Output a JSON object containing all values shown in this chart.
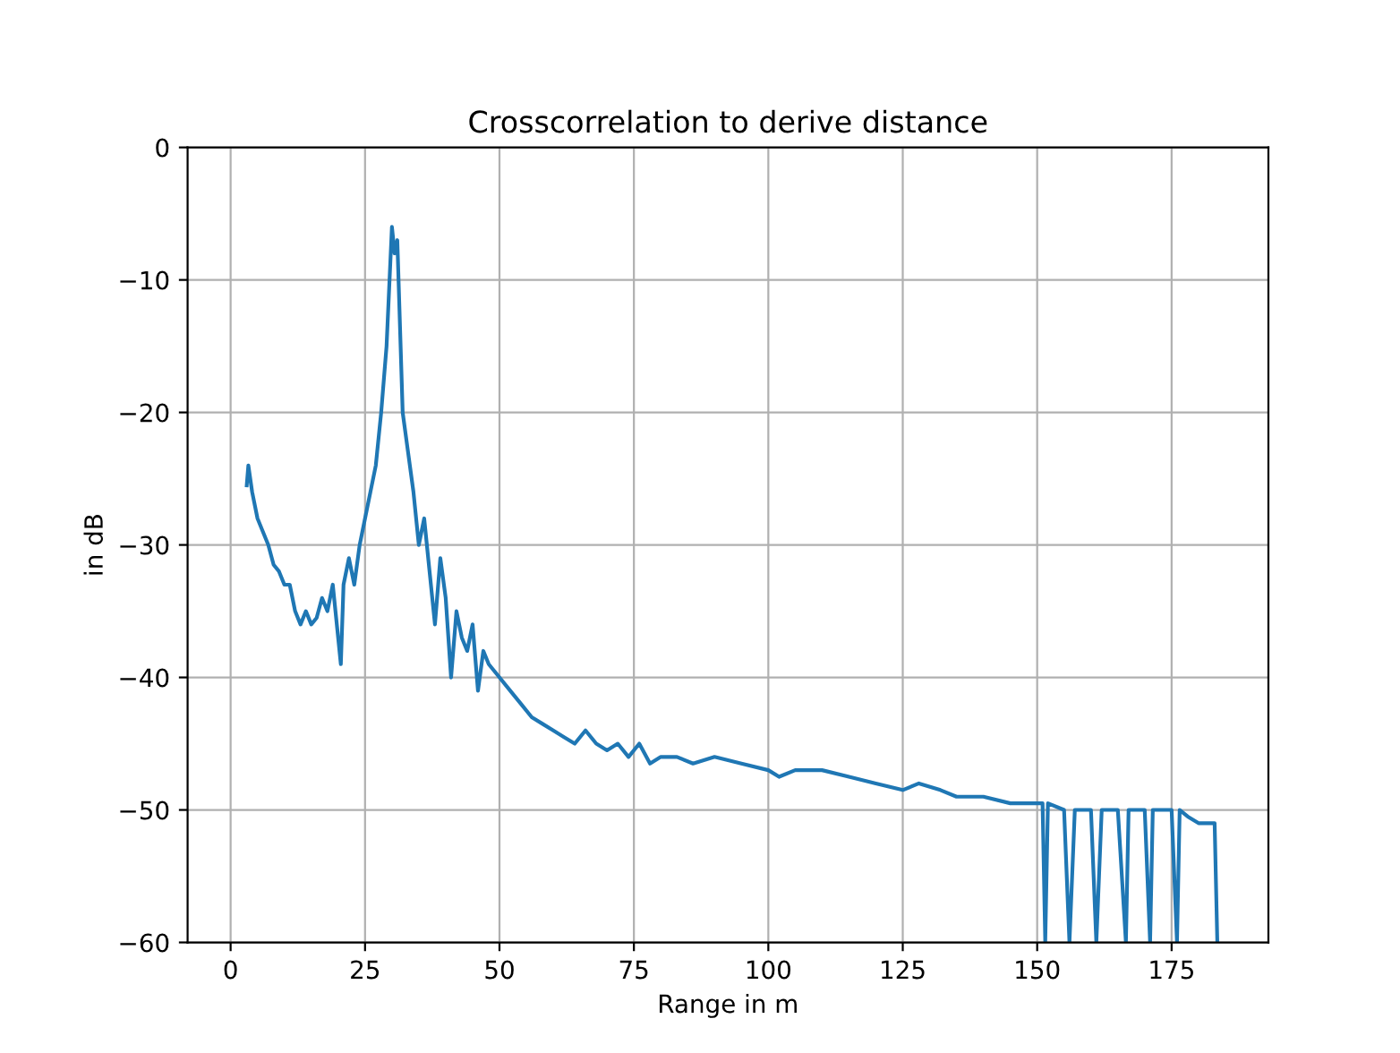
{
  "chart_data": {
    "type": "line",
    "title": "Crosscorrelation to derive distance",
    "xlabel": "Range in m",
    "ylabel": "in dB",
    "xlim": [
      -8,
      193
    ],
    "ylim": [
      -60,
      0
    ],
    "xticks": [
      0,
      25,
      50,
      75,
      100,
      125,
      150,
      175
    ],
    "yticks": [
      {
        "value": -60,
        "label": "−60"
      },
      {
        "value": -50,
        "label": "−50"
      },
      {
        "value": -40,
        "label": "−40"
      },
      {
        "value": -30,
        "label": "−30"
      },
      {
        "value": -20,
        "label": "−20"
      },
      {
        "value": -10,
        "label": "−10"
      },
      0
    ],
    "grid": true,
    "legend": false,
    "series": [
      {
        "color": "#1f77b4",
        "x": [
          3.0,
          3.3,
          4,
          5,
          6,
          7,
          8,
          9,
          10,
          11,
          12,
          13,
          14,
          15,
          16,
          17,
          18,
          19,
          20.5,
          21,
          22,
          23,
          24,
          25,
          26,
          27,
          28,
          29,
          30,
          30.5,
          31,
          32,
          33,
          34,
          35,
          36,
          37,
          38,
          39,
          40,
          41,
          42,
          43,
          44,
          45,
          46,
          47,
          48,
          50,
          52,
          54,
          56,
          58,
          60,
          62,
          64,
          66,
          68,
          70,
          72,
          74,
          76,
          78,
          80,
          83,
          86,
          90,
          95,
          100,
          102,
          105,
          110,
          115,
          120,
          125,
          128,
          132,
          135,
          140,
          145,
          150,
          151,
          151.5,
          152,
          155,
          156,
          157,
          160,
          161,
          162,
          165,
          166.5,
          167,
          170,
          171,
          171.5,
          175,
          176,
          176.5,
          178,
          180,
          182,
          183,
          183.5
        ],
        "values": [
          -25.5,
          -24,
          -26,
          -28,
          -29,
          -30,
          -31.5,
          -32,
          -33,
          -33,
          -35,
          -36,
          -35,
          -36,
          -35.5,
          -34,
          -35,
          -33,
          -39,
          -33,
          -31,
          -33,
          -30,
          -28,
          -26,
          -24,
          -20,
          -15,
          -6,
          -8,
          -7,
          -20,
          -23,
          -26,
          -30,
          -28,
          -32,
          -36,
          -31,
          -34,
          -40,
          -35,
          -37,
          -38,
          -36,
          -41,
          -38,
          -39,
          -40,
          -41,
          -42,
          -43,
          -43.5,
          -44,
          -44.5,
          -45,
          -44,
          -45,
          -45.5,
          -45,
          -46,
          -45,
          -46.5,
          -46,
          -46,
          -46.5,
          -46,
          -46.5,
          -47,
          -47.5,
          -47,
          -47,
          -47.5,
          -48,
          -48.5,
          -48,
          -48.5,
          -49,
          -49,
          -49.5,
          -49.5,
          -49.5,
          -60,
          -49.5,
          -50,
          -60,
          -50,
          -50,
          -60,
          -50,
          -50,
          -60,
          -50,
          -50,
          -60,
          -50,
          -50,
          -60,
          -50,
          -50.5,
          -51,
          -51,
          -51,
          -60
        ]
      }
    ]
  }
}
